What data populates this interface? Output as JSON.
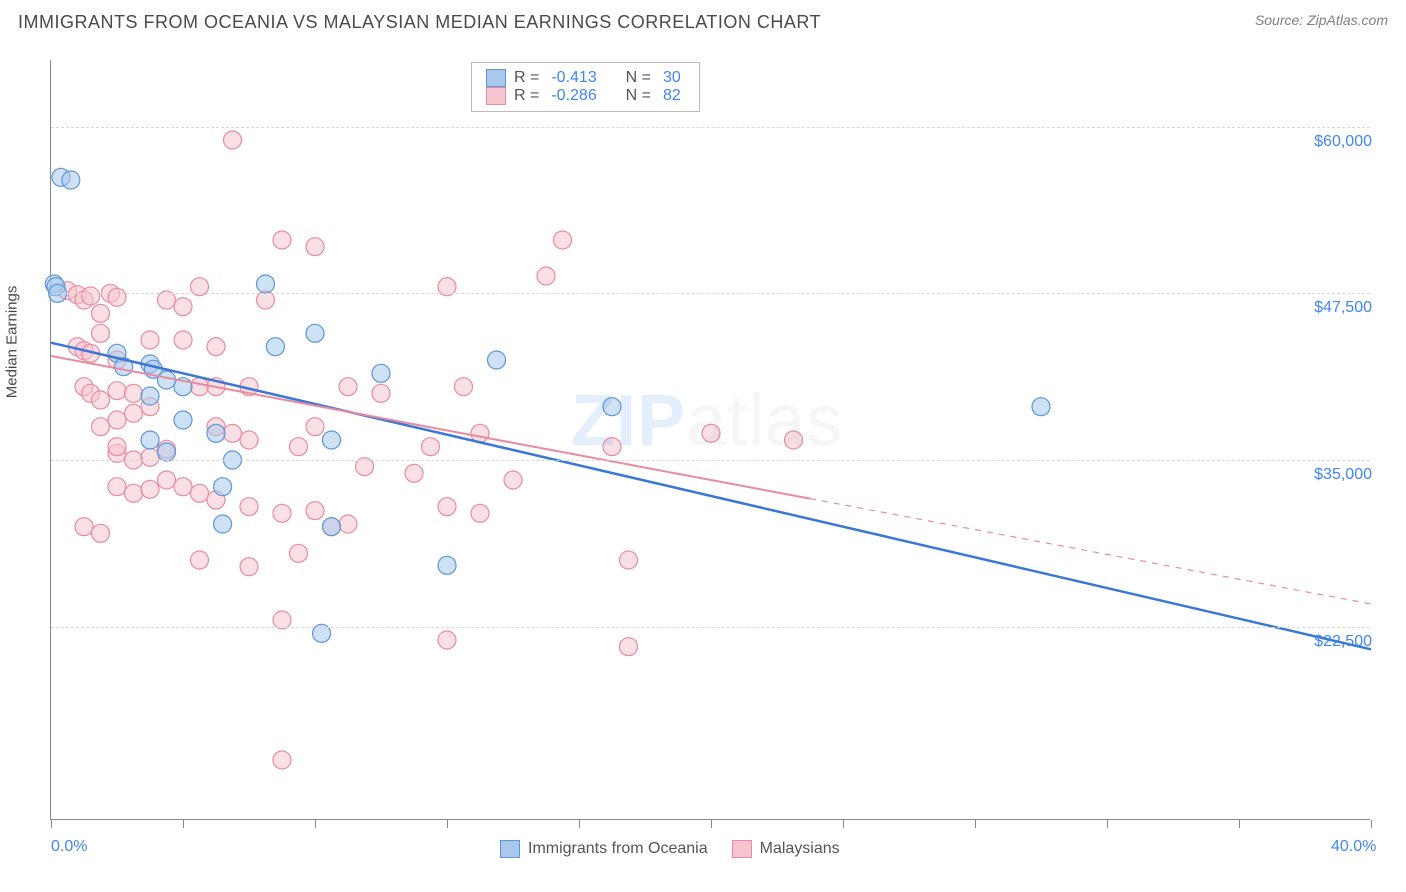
{
  "title": "IMMIGRANTS FROM OCEANIA VS MALAYSIAN MEDIAN EARNINGS CORRELATION CHART",
  "source": "Source: ZipAtlas.com",
  "watermark_left": "ZIP",
  "watermark_right": "atlas",
  "chart": {
    "type": "scatter",
    "ylabel": "Median Earnings",
    "xlim": [
      0,
      40
    ],
    "ylim": [
      8000,
      65000
    ],
    "x_tick_positions": [
      0,
      4,
      8,
      12,
      16,
      20,
      24,
      28,
      32,
      36,
      40
    ],
    "x_ticklabels_visible": {
      "0": "0.0%",
      "40": "40.0%"
    },
    "y_ticks": [
      22500,
      35000,
      47500,
      60000
    ],
    "y_ticklabels": [
      "$22,500",
      "$35,000",
      "$47,500",
      "$60,000"
    ],
    "background_color": "#ffffff",
    "grid_color": "#d8d8d8",
    "axis_color": "#888888",
    "label_fontsize": 15,
    "tick_fontsize": 16,
    "tick_label_color": "#4285f4",
    "marker_radius": 9,
    "marker_opacity": 0.55,
    "series": [
      {
        "name": "Immigrants from Oceania",
        "color_fill": "#a8c8ec",
        "color_stroke": "#5a96d8",
        "R": "-0.413",
        "N": "30",
        "regression": {
          "x1": 0,
          "y1": 43800,
          "x2": 40,
          "y2": 20800,
          "dash_after_x": null
        },
        "line_color": "#3b78d6",
        "line_width": 2.5,
        "points": [
          [
            0.3,
            56200
          ],
          [
            0.6,
            56000
          ],
          [
            0.1,
            48200
          ],
          [
            0.15,
            48000
          ],
          [
            0.2,
            47500
          ],
          [
            2.0,
            43000
          ],
          [
            2.2,
            42000
          ],
          [
            3.0,
            42200
          ],
          [
            3.1,
            41800
          ],
          [
            3.5,
            41000
          ],
          [
            6.5,
            48200
          ],
          [
            6.8,
            43500
          ],
          [
            3.0,
            36500
          ],
          [
            3.5,
            35600
          ],
          [
            5.0,
            37000
          ],
          [
            8.0,
            44500
          ],
          [
            10.0,
            41500
          ],
          [
            13.5,
            42500
          ],
          [
            17.0,
            39000
          ],
          [
            5.2,
            33000
          ],
          [
            5.2,
            30200
          ],
          [
            8.5,
            30000
          ],
          [
            12.0,
            27100
          ],
          [
            8.2,
            22000
          ],
          [
            5.5,
            35000
          ],
          [
            3.0,
            39800
          ],
          [
            4.0,
            40500
          ],
          [
            4.0,
            38000
          ],
          [
            30.0,
            39000
          ],
          [
            8.5,
            36500
          ]
        ]
      },
      {
        "name": "Malaysians",
        "color_fill": "#f6c4ce",
        "color_stroke": "#e88ba0",
        "R": "-0.286",
        "N": "82",
        "regression": {
          "x1": 0,
          "y1": 42800,
          "x2": 40,
          "y2": 24200,
          "dash_after_x": 23
        },
        "line_color": "#e88ba0",
        "line_width": 2,
        "points": [
          [
            0.5,
            47700
          ],
          [
            0.8,
            47400
          ],
          [
            1.0,
            47000
          ],
          [
            1.2,
            47300
          ],
          [
            1.5,
            46000
          ],
          [
            1.8,
            47500
          ],
          [
            2.0,
            47200
          ],
          [
            0.8,
            43500
          ],
          [
            1.0,
            43200
          ],
          [
            1.2,
            43000
          ],
          [
            1.5,
            44500
          ],
          [
            1.0,
            40500
          ],
          [
            1.2,
            40000
          ],
          [
            1.5,
            39500
          ],
          [
            2.0,
            40200
          ],
          [
            2.5,
            40000
          ],
          [
            2.0,
            38000
          ],
          [
            2.5,
            38500
          ],
          [
            3.0,
            39000
          ],
          [
            2.0,
            35500
          ],
          [
            2.5,
            35000
          ],
          [
            3.0,
            35200
          ],
          [
            3.5,
            35800
          ],
          [
            2.0,
            33000
          ],
          [
            2.5,
            32500
          ],
          [
            3.0,
            32800
          ],
          [
            3.5,
            33500
          ],
          [
            1.5,
            37500
          ],
          [
            2.0,
            36000
          ],
          [
            4.0,
            44000
          ],
          [
            4.5,
            40500
          ],
          [
            5.0,
            43500
          ],
          [
            5.0,
            40500
          ],
          [
            6.0,
            40500
          ],
          [
            6.5,
            47000
          ],
          [
            5.5,
            59000
          ],
          [
            7.0,
            51500
          ],
          [
            8.0,
            51000
          ],
          [
            5.0,
            37500
          ],
          [
            5.5,
            37000
          ],
          [
            6.0,
            36500
          ],
          [
            4.0,
            33000
          ],
          [
            4.5,
            32500
          ],
          [
            5.0,
            32000
          ],
          [
            6.0,
            31500
          ],
          [
            7.0,
            31000
          ],
          [
            8.0,
            31200
          ],
          [
            7.5,
            36000
          ],
          [
            8.0,
            37500
          ],
          [
            9.0,
            40500
          ],
          [
            8.5,
            30000
          ],
          [
            9.0,
            30200
          ],
          [
            10.0,
            40000
          ],
          [
            11.0,
            34000
          ],
          [
            12.0,
            48000
          ],
          [
            12.5,
            40500
          ],
          [
            13.0,
            37000
          ],
          [
            15.0,
            48800
          ],
          [
            15.5,
            51500
          ],
          [
            17.0,
            36000
          ],
          [
            13.0,
            31000
          ],
          [
            14.0,
            33500
          ],
          [
            12.0,
            31500
          ],
          [
            11.5,
            36000
          ],
          [
            7.5,
            28000
          ],
          [
            6.0,
            27000
          ],
          [
            4.5,
            27500
          ],
          [
            7.0,
            23000
          ],
          [
            7.0,
            12500
          ],
          [
            17.5,
            21000
          ],
          [
            12.0,
            21500
          ],
          [
            17.5,
            27500
          ],
          [
            20.0,
            37000
          ],
          [
            22.5,
            36500
          ],
          [
            9.5,
            34500
          ],
          [
            3.5,
            47000
          ],
          [
            4.5,
            48000
          ],
          [
            1.0,
            30000
          ],
          [
            1.5,
            29500
          ],
          [
            2.0,
            42500
          ],
          [
            3.0,
            44000
          ],
          [
            4.0,
            46500
          ]
        ]
      }
    ],
    "legend_top": {
      "R_label": "R =",
      "N_label": "N ="
    },
    "legend_bottom": [
      {
        "label": "Immigrants from Oceania",
        "fill": "#a8c8ec",
        "stroke": "#5a96d8"
      },
      {
        "label": "Malaysians",
        "fill": "#f6c4ce",
        "stroke": "#e88ba0"
      }
    ]
  }
}
